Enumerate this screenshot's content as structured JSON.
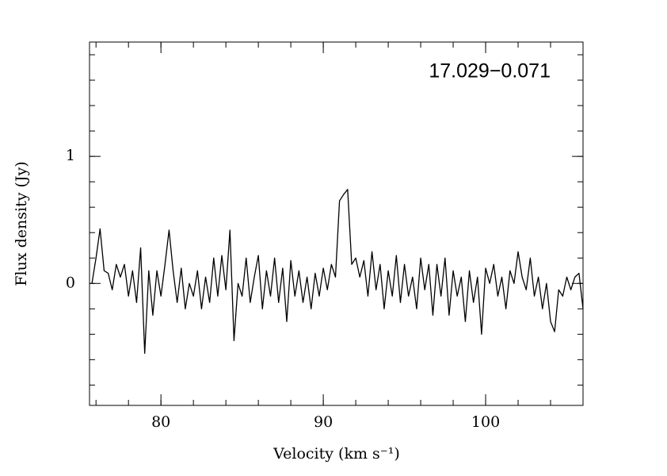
{
  "chart_data": {
    "type": "line",
    "annotation": "17.029−0.071",
    "xlabel": "Velocity (km s⁻¹)",
    "ylabel": "Flux density (Jy)",
    "color": "#000000",
    "xlim": [
      75.6,
      106.0
    ],
    "ylim": [
      -0.96,
      1.9
    ],
    "xticks": [
      80,
      90,
      100
    ],
    "yticks": [
      0,
      1
    ],
    "xminorticks": [
      76,
      78,
      80,
      82,
      84,
      86,
      88,
      90,
      92,
      94,
      96,
      98,
      100,
      102,
      104
    ],
    "yminorticks": [
      -0.8,
      -0.6,
      -0.4,
      -0.2,
      0,
      0.2,
      0.4,
      0.6,
      0.8,
      1,
      1.2,
      1.4,
      1.6,
      1.8
    ],
    "x": [
      75.75,
      76,
      76.25,
      76.5,
      76.75,
      77,
      77.25,
      77.5,
      77.75,
      78,
      78.25,
      78.5,
      78.75,
      79,
      79.25,
      79.5,
      79.75,
      80,
      80.25,
      80.5,
      80.75,
      81,
      81.25,
      81.5,
      81.75,
      82,
      82.25,
      82.5,
      82.75,
      83,
      83.25,
      83.5,
      83.75,
      84,
      84.25,
      84.5,
      84.75,
      85,
      85.25,
      85.5,
      85.75,
      86,
      86.25,
      86.5,
      86.75,
      87,
      87.25,
      87.5,
      87.75,
      88,
      88.25,
      88.5,
      88.75,
      89,
      89.25,
      89.5,
      89.75,
      90,
      90.25,
      90.5,
      90.75,
      91,
      91.25,
      91.5,
      91.75,
      92,
      92.25,
      92.5,
      92.75,
      93,
      93.25,
      93.5,
      93.75,
      94,
      94.25,
      94.5,
      94.75,
      95,
      95.25,
      95.5,
      95.75,
      96,
      96.25,
      96.5,
      96.75,
      97,
      97.25,
      97.5,
      97.75,
      98,
      98.25,
      98.5,
      98.75,
      99,
      99.25,
      99.5,
      99.75,
      100,
      100.25,
      100.5,
      100.75,
      101,
      101.25,
      101.5,
      101.75,
      102,
      102.25,
      102.5,
      102.75,
      103,
      103.25,
      103.5,
      103.75,
      104,
      104.25,
      104.5,
      104.75,
      105,
      105.25,
      105.5,
      105.75,
      106
    ],
    "values": [
      0.0,
      0.2,
      0.43,
      0.1,
      0.08,
      -0.05,
      0.15,
      0.05,
      0.15,
      -0.1,
      0.1,
      -0.15,
      0.28,
      -0.55,
      0.1,
      -0.25,
      0.1,
      -0.1,
      0.15,
      0.42,
      0.1,
      -0.15,
      0.12,
      -0.2,
      0.0,
      -0.1,
      0.1,
      -0.2,
      0.05,
      -0.15,
      0.2,
      -0.1,
      0.22,
      -0.05,
      0.42,
      -0.45,
      0.0,
      -0.1,
      0.2,
      -0.15,
      0.05,
      0.22,
      -0.2,
      0.1,
      -0.1,
      0.2,
      -0.15,
      0.12,
      -0.3,
      0.18,
      -0.1,
      0.1,
      -0.15,
      0.05,
      -0.2,
      0.08,
      -0.1,
      0.12,
      -0.05,
      0.15,
      0.05,
      0.65,
      0.7,
      0.74,
      0.15,
      0.2,
      0.05,
      0.18,
      -0.1,
      0.25,
      -0.05,
      0.15,
      -0.2,
      0.1,
      -0.1,
      0.22,
      -0.15,
      0.15,
      -0.1,
      0.05,
      -0.2,
      0.2,
      -0.05,
      0.15,
      -0.25,
      0.15,
      -0.1,
      0.2,
      -0.25,
      0.1,
      -0.1,
      0.05,
      -0.3,
      0.1,
      -0.15,
      0.05,
      -0.4,
      0.12,
      0.0,
      0.15,
      -0.1,
      0.05,
      -0.2,
      0.1,
      0.0,
      0.25,
      0.05,
      -0.05,
      0.2,
      -0.1,
      0.05,
      -0.2,
      0.0,
      -0.3,
      -0.38,
      -0.05,
      -0.1,
      0.05,
      -0.05,
      0.05,
      0.08,
      -0.2
    ]
  }
}
